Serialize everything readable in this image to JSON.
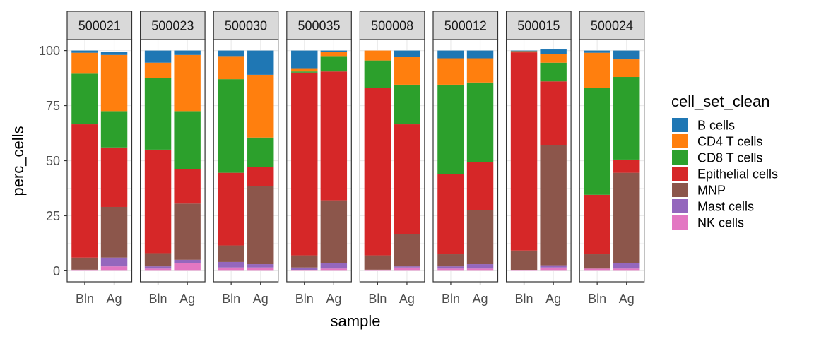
{
  "chart_data": {
    "type": "bar",
    "stacked": true,
    "facets": [
      "500021",
      "500023",
      "500030",
      "500035",
      "500008",
      "500012",
      "500015",
      "500024"
    ],
    "categories": [
      "Bln",
      "Ag"
    ],
    "xlabel": "sample",
    "ylabel": "perc_cells",
    "ylim": [
      -5,
      105
    ],
    "yticks": [
      0,
      25,
      50,
      75,
      100
    ],
    "grid": true,
    "legend": {
      "title": "cell_set_clean",
      "position": "right"
    },
    "series": [
      {
        "name": "NK cells",
        "color": "#E377C2",
        "values": [
          [
            0.3,
            2.0
          ],
          [
            1.0,
            3.5
          ],
          [
            1.5,
            1.5
          ],
          [
            0.3,
            1.0
          ],
          [
            0.5,
            1.5
          ],
          [
            1.0,
            1.0
          ],
          [
            0.2,
            1.5
          ],
          [
            1.0,
            1.0
          ]
        ]
      },
      {
        "name": "Mast cells",
        "color": "#9467BD",
        "values": [
          [
            0.2,
            4.0
          ],
          [
            1.0,
            1.5
          ],
          [
            2.5,
            1.5
          ],
          [
            1.2,
            2.5
          ],
          [
            0.0,
            0.5
          ],
          [
            1.0,
            2.0
          ],
          [
            0.0,
            1.0
          ],
          [
            0.0,
            2.5
          ]
        ]
      },
      {
        "name": "MNP",
        "color": "#8C564B",
        "values": [
          [
            5.5,
            23.0
          ],
          [
            6.0,
            25.5
          ],
          [
            7.5,
            35.5
          ],
          [
            5.5,
            28.5
          ],
          [
            6.5,
            14.5
          ],
          [
            5.5,
            24.5
          ],
          [
            9.0,
            54.5
          ],
          [
            6.5,
            41.0
          ]
        ]
      },
      {
        "name": "Epithelial cells",
        "color": "#D62728",
        "values": [
          [
            60.5,
            27.0
          ],
          [
            47.0,
            15.5
          ],
          [
            33.0,
            8.5
          ],
          [
            83.0,
            58.5
          ],
          [
            76.0,
            50.0
          ],
          [
            36.5,
            22.0
          ],
          [
            90.0,
            29.0
          ],
          [
            27.0,
            6.0
          ]
        ]
      },
      {
        "name": "CD8 T cells",
        "color": "#2CA02C",
        "values": [
          [
            23.0,
            16.5
          ],
          [
            32.5,
            26.5
          ],
          [
            42.5,
            13.5
          ],
          [
            0.5,
            7.0
          ],
          [
            12.5,
            18.0
          ],
          [
            40.5,
            36.0
          ],
          [
            0.0,
            8.5
          ],
          [
            48.5,
            37.5
          ]
        ]
      },
      {
        "name": "CD4 T cells",
        "color": "#FF7F0E",
        "values": [
          [
            9.5,
            25.5
          ],
          [
            7.0,
            25.5
          ],
          [
            10.5,
            28.5
          ],
          [
            1.5,
            2.0
          ],
          [
            4.5,
            12.5
          ],
          [
            12.0,
            11.0
          ],
          [
            0.5,
            4.0
          ],
          [
            16.0,
            8.0
          ]
        ]
      },
      {
        "name": "B cells",
        "color": "#1F77B4",
        "values": [
          [
            1.0,
            1.5
          ],
          [
            5.5,
            2.0
          ],
          [
            2.5,
            11.0
          ],
          [
            8.0,
            0.5
          ],
          [
            0.0,
            3.0
          ],
          [
            3.5,
            3.5
          ],
          [
            0.3,
            2.0
          ],
          [
            1.0,
            4.0
          ]
        ]
      }
    ]
  }
}
